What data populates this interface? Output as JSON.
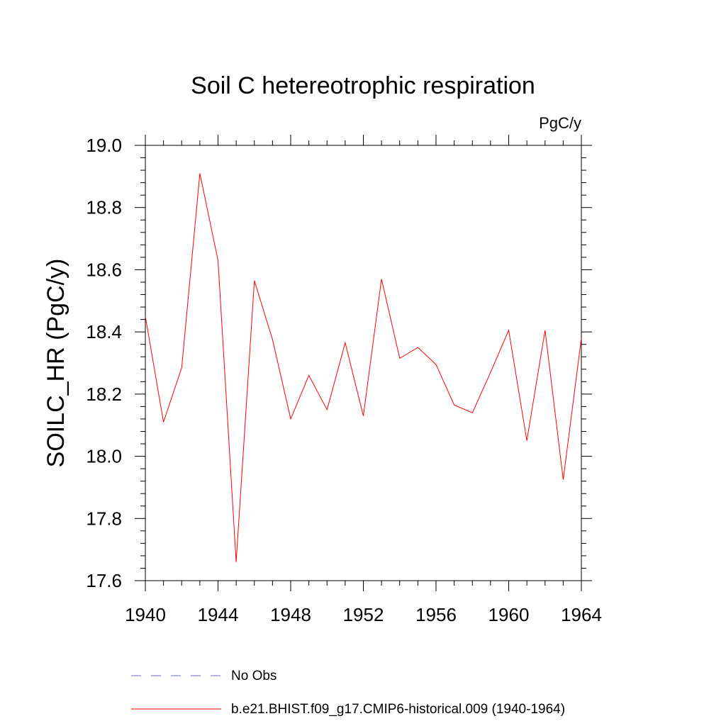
{
  "chart_data": {
    "type": "line",
    "title": "Soil C hetereotrophic respiration",
    "units_label": "PgC/y",
    "ylabel": "SOILC_HR  (PgC/y)",
    "xlabel": "",
    "xlim": [
      1940,
      1964
    ],
    "ylim": [
      17.6,
      19.0
    ],
    "x_ticks": [
      "1940",
      "1944",
      "1948",
      "1952",
      "1956",
      "1960",
      "1964"
    ],
    "y_ticks": [
      "17.6",
      "17.8",
      "18.0",
      "18.2",
      "18.4",
      "18.6",
      "18.8",
      "19.0"
    ],
    "series": [
      {
        "name": "b.e21.BHIST.f09_g17.CMIP6-historical.009 (1940-1964)",
        "color": "#ff0000",
        "x": [
          1940,
          1941,
          1942,
          1943,
          1944,
          1945,
          1946,
          1947,
          1948,
          1949,
          1950,
          1951,
          1952,
          1953,
          1954,
          1955,
          1956,
          1957,
          1958,
          1959,
          1960,
          1961,
          1962,
          1963,
          1964
        ],
        "values": [
          18.45,
          18.11,
          18.285,
          18.91,
          18.63,
          17.66,
          18.565,
          18.375,
          18.12,
          18.26,
          18.15,
          18.365,
          18.13,
          18.57,
          18.315,
          18.35,
          18.295,
          18.165,
          18.14,
          18.27,
          18.405,
          18.05,
          18.405,
          17.925,
          18.38
        ]
      }
    ],
    "legend": [
      {
        "label": "No Obs",
        "style": "dashed",
        "color": "#6a6ac8"
      },
      {
        "label": "b.e21.BHIST.f09_g17.CMIP6-historical.009 (1940-1964)",
        "style": "solid",
        "color": "#ff0000"
      }
    ]
  }
}
